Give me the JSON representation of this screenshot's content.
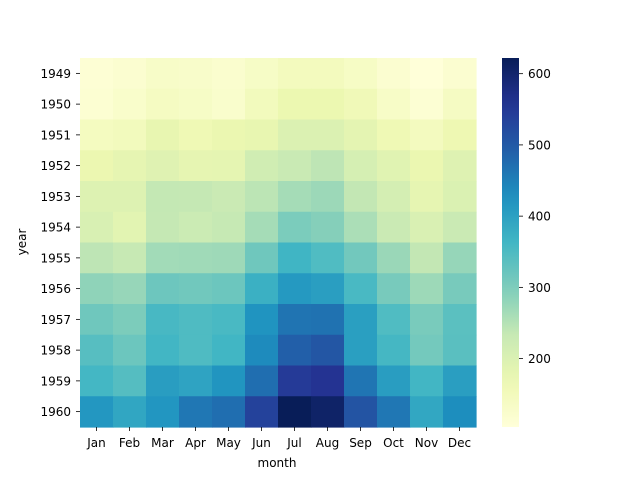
{
  "chart_data": {
    "type": "heatmap",
    "title": "",
    "xlabel": "month",
    "ylabel": "year",
    "x_categories": [
      "Jan",
      "Feb",
      "Mar",
      "Apr",
      "May",
      "Jun",
      "Jul",
      "Aug",
      "Sep",
      "Oct",
      "Nov",
      "Dec"
    ],
    "y_categories": [
      "1949",
      "1950",
      "1951",
      "1952",
      "1953",
      "1954",
      "1955",
      "1956",
      "1957",
      "1958",
      "1959",
      "1960"
    ],
    "values": [
      [
        112,
        118,
        132,
        129,
        121,
        135,
        148,
        148,
        136,
        119,
        104,
        118
      ],
      [
        115,
        126,
        141,
        135,
        125,
        149,
        170,
        170,
        158,
        133,
        114,
        140
      ],
      [
        145,
        150,
        178,
        163,
        172,
        178,
        199,
        199,
        184,
        162,
        146,
        166
      ],
      [
        171,
        180,
        193,
        181,
        183,
        218,
        230,
        242,
        209,
        191,
        172,
        194
      ],
      [
        196,
        196,
        236,
        235,
        229,
        243,
        264,
        272,
        237,
        211,
        180,
        201
      ],
      [
        204,
        188,
        235,
        227,
        234,
        264,
        302,
        293,
        259,
        229,
        203,
        229
      ],
      [
        242,
        233,
        267,
        269,
        270,
        315,
        364,
        347,
        312,
        274,
        237,
        278
      ],
      [
        284,
        277,
        317,
        313,
        318,
        374,
        413,
        405,
        355,
        306,
        271,
        306
      ],
      [
        315,
        301,
        356,
        348,
        355,
        422,
        465,
        467,
        404,
        347,
        305,
        336
      ],
      [
        340,
        318,
        362,
        348,
        363,
        435,
        491,
        505,
        404,
        359,
        310,
        337
      ],
      [
        360,
        342,
        406,
        396,
        420,
        472,
        548,
        559,
        463,
        407,
        362,
        405
      ],
      [
        417,
        391,
        419,
        461,
        472,
        535,
        622,
        606,
        508,
        461,
        390,
        432
      ]
    ],
    "colorbar": {
      "colormap": "YlGnBu",
      "min": 104,
      "max": 622,
      "ticks": [
        200,
        300,
        400,
        500,
        600
      ]
    }
  }
}
